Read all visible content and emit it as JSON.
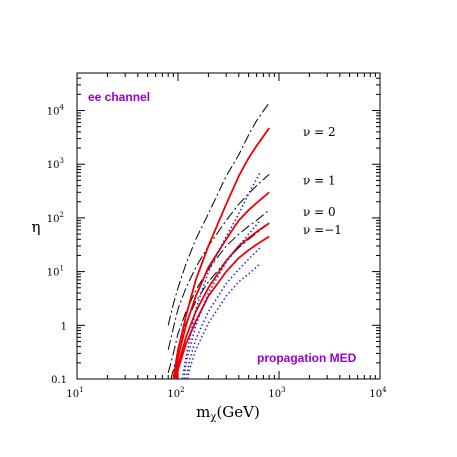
{
  "chart_data": {
    "type": "line",
    "xlabel_base": "m",
    "xlabel_sub": "χ",
    "xlabel_unit": "(GeV)",
    "ylabel": "η",
    "xscale": "log",
    "yscale": "log",
    "xlim": [
      10,
      10000
    ],
    "ylim": [
      0.1,
      50000
    ],
    "x_ticks": [
      {
        "base": "10",
        "exp": "1"
      },
      {
        "base": "10",
        "exp": "2"
      },
      {
        "base": "10",
        "exp": "3"
      },
      {
        "base": "10",
        "exp": "4"
      }
    ],
    "y_ticks": [
      {
        "base": "0.1",
        "exp": ""
      },
      {
        "base": "1",
        "exp": ""
      },
      {
        "base": "10",
        "exp": "1"
      },
      {
        "base": "10",
        "exp": "2"
      },
      {
        "base": "10",
        "exp": "3"
      },
      {
        "base": "10",
        "exp": "4"
      }
    ],
    "annotations": {
      "channel": "ee channel",
      "propagation": "propagation MED",
      "annotation_color": "#9900cc"
    },
    "nu_labels": [
      {
        "text": "ν = 2",
        "y": 4000
      },
      {
        "text": "ν = 1",
        "y": 500
      },
      {
        "text": "ν = 0",
        "y": 130
      },
      {
        "text": "ν =−1",
        "y": 60
      }
    ],
    "colors": {
      "dashed": "#000000",
      "solid": "#ee0000",
      "dotted": "#2222cc"
    },
    "series": [
      {
        "style": "dashed",
        "x": [
          80,
          90,
          100,
          120,
          150,
          200,
          300,
          400,
          500,
          600,
          800
        ],
        "y": [
          1.0,
          2.5,
          5.0,
          14,
          40,
          120,
          600,
          1500,
          3500,
          6500,
          14000
        ]
      },
      {
        "style": "dashed",
        "x": [
          80,
          90,
          100,
          120,
          150,
          200,
          300,
          400,
          500,
          600,
          800
        ],
        "y": [
          0.35,
          0.9,
          2.0,
          5.0,
          12,
          30,
          90,
          180,
          280,
          400,
          650
        ]
      },
      {
        "style": "dashed",
        "x": [
          80,
          90,
          100,
          120,
          150,
          200,
          300,
          400,
          500,
          600,
          800
        ],
        "y": [
          0.13,
          0.3,
          0.7,
          1.8,
          4.5,
          11,
          30,
          50,
          70,
          90,
          140
        ]
      },
      {
        "style": "dashed",
        "x": [
          85,
          95,
          105,
          120,
          150,
          200,
          300,
          400,
          500,
          600,
          800
        ],
        "y": [
          0.1,
          0.22,
          0.5,
          1.1,
          2.8,
          6.5,
          16,
          28,
          40,
          52,
          80
        ]
      },
      {
        "style": "solid",
        "x": [
          90,
          100,
          120,
          150,
          200,
          300,
          400,
          500,
          600,
          800
        ],
        "y": [
          0.1,
          0.35,
          1.5,
          7,
          30,
          180,
          600,
          1300,
          2200,
          4700
        ]
      },
      {
        "style": "solid",
        "x": [
          93,
          100,
          120,
          150,
          200,
          300,
          400,
          500,
          600,
          800
        ],
        "y": [
          0.1,
          0.25,
          1.0,
          3.5,
          12,
          40,
          90,
          140,
          190,
          300
        ]
      },
      {
        "style": "solid",
        "x": [
          95,
          100,
          120,
          150,
          200,
          300,
          400,
          500,
          600,
          800
        ],
        "y": [
          0.1,
          0.18,
          0.6,
          1.8,
          5,
          16,
          30,
          42,
          55,
          80
        ]
      },
      {
        "style": "solid",
        "x": [
          97,
          100,
          120,
          150,
          200,
          300,
          400,
          500,
          600,
          800
        ],
        "y": [
          0.1,
          0.15,
          0.45,
          1.2,
          3.5,
          10,
          18,
          25,
          32,
          45
        ]
      },
      {
        "style": "dotted",
        "x": [
          110,
          120,
          150,
          200,
          300,
          400,
          500,
          650
        ],
        "y": [
          0.1,
          0.25,
          2.0,
          10,
          45,
          120,
          280,
          700
        ]
      },
      {
        "style": "dotted",
        "x": [
          115,
          120,
          150,
          200,
          300,
          400,
          500,
          650
        ],
        "y": [
          0.1,
          0.2,
          1.0,
          4,
          15,
          30,
          50,
          90
        ]
      },
      {
        "style": "dotted",
        "x": [
          120,
          130,
          150,
          200,
          300,
          400,
          500,
          650
        ],
        "y": [
          0.1,
          0.22,
          0.55,
          1.8,
          6,
          11,
          17,
          28
        ]
      },
      {
        "style": "dotted",
        "x": [
          125,
          130,
          150,
          200,
          300,
          400,
          500,
          650
        ],
        "y": [
          0.1,
          0.15,
          0.35,
          1.1,
          3.5,
          6.5,
          9,
          14
        ]
      }
    ]
  }
}
